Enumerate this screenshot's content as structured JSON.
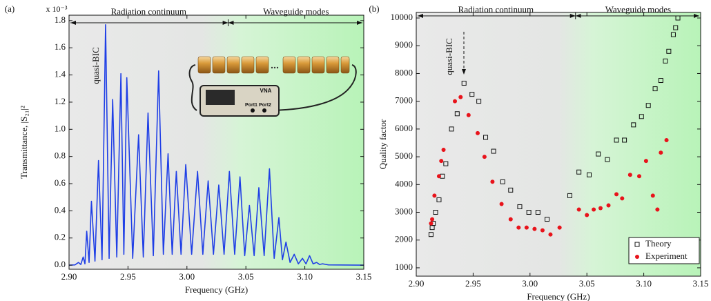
{
  "chart_data": [
    {
      "type": "line",
      "panel_label": "(a)",
      "x_label": "Frequency (GHz)",
      "y_label": "Transmittance, |S₂₁|²",
      "scale_label": "x 10⁻³",
      "annotations": [
        "Radiation continuum",
        "Waveguide modes",
        "quasi-BIC"
      ],
      "inset_labels": [
        "VNA",
        "Port1",
        "Port2"
      ],
      "color": "#1f3fe6",
      "x": [
        2.9,
        2.905,
        2.908,
        2.91,
        2.912,
        2.9135,
        2.915,
        2.917,
        2.919,
        2.922,
        2.925,
        2.928,
        2.931,
        2.934,
        2.937,
        2.9405,
        2.944,
        2.9465,
        2.949,
        2.954,
        2.959,
        2.963,
        2.967,
        2.9715,
        2.976,
        2.98,
        2.984,
        2.9875,
        2.991,
        2.995,
        2.999,
        3.004,
        3.009,
        3.0135,
        3.018,
        3.0225,
        3.027,
        3.0315,
        3.036,
        3.0405,
        3.045,
        3.049,
        3.053,
        3.057,
        3.061,
        3.0655,
        3.07,
        3.074,
        3.078,
        3.081,
        3.084,
        3.0875,
        3.091,
        3.0945,
        3.098,
        3.101,
        3.104,
        3.107,
        3.11,
        3.1125,
        3.115,
        3.12,
        3.15
      ],
      "values": [
        0,
        0.002,
        0.02,
        0.005,
        0.06,
        0.01,
        0.25,
        0.02,
        0.47,
        0.03,
        0.77,
        0.04,
        1.77,
        0.05,
        1.22,
        0.06,
        1.41,
        0.08,
        1.38,
        0.05,
        0.96,
        0.06,
        1.12,
        0.07,
        1.43,
        0.08,
        0.82,
        0.08,
        0.69,
        0.08,
        0.74,
        0.08,
        0.69,
        0.08,
        0.62,
        0.08,
        0.59,
        0.08,
        0.69,
        0.08,
        0.65,
        0.07,
        0.44,
        0.07,
        0.57,
        0.07,
        0.71,
        0.05,
        0.35,
        0.04,
        0.17,
        0.02,
        0.08,
        0.01,
        0.05,
        0.01,
        0.07,
        0.01,
        0.02,
        0.005,
        0.01,
        0.002,
        0
      ],
      "xlim": [
        2.9,
        3.15
      ],
      "ylim": [
        -0.03,
        1.84
      ],
      "xticks": [
        {
          "value": 2.9,
          "label": "2.90"
        },
        2.95,
        {
          "value": 3.0,
          "label": "3.00"
        },
        3.05,
        {
          "value": 3.1,
          "label": "3.10"
        },
        3.15
      ],
      "yticks": [
        {
          "value": 0,
          "label": "0.0"
        },
        0.2,
        0.4,
        0.6,
        0.8,
        {
          "value": 1,
          "label": "1.0"
        },
        1.2,
        1.4,
        1.6,
        1.8
      ],
      "grid": false
    },
    {
      "type": "scatter",
      "panel_label": "(b)",
      "x_label": "Frequency (GHz)",
      "y_label": "Quality factor",
      "annotations": [
        "Radiation continuum",
        "Waveguide modes",
        "quasi-BIC"
      ],
      "series": [
        {
          "name": "Theory",
          "color": "#111111",
          "marker": "square-open",
          "x": [
            2.913,
            2.914,
            2.915,
            2.917,
            2.92,
            2.923,
            2.926,
            2.931,
            2.936,
            2.942,
            2.949,
            2.955,
            2.961,
            2.968,
            2.976,
            2.983,
            2.991,
            2.999,
            3.007,
            3.015,
            3.035,
            3.043,
            3.052,
            3.06,
            3.068,
            3.076,
            3.083,
            3.091,
            3.098,
            3.104,
            3.11,
            3.115,
            3.119,
            3.122,
            3.126,
            3.128,
            3.13
          ],
          "values": [
            2200,
            2450,
            2600,
            3000,
            3450,
            4300,
            4750,
            6000,
            6550,
            7650,
            7250,
            7000,
            5700,
            5200,
            4100,
            3800,
            3200,
            3000,
            3000,
            2750,
            3600,
            4450,
            4350,
            5100,
            4900,
            5600,
            5600,
            6150,
            6450,
            6850,
            7450,
            7750,
            8450,
            8800,
            9400,
            9650,
            10000
          ]
        },
        {
          "name": "Experiment",
          "color": "#e8131b",
          "marker": "circle",
          "x": [
            2.913,
            2.914,
            2.916,
            2.92,
            2.922,
            2.924,
            2.934,
            2.939,
            2.946,
            2.954,
            2.96,
            2.967,
            2.975,
            2.983,
            2.99,
            2.997,
            3.004,
            3.011,
            3.018,
            3.026,
            3.043,
            3.05,
            3.056,
            3.062,
            3.069,
            3.076,
            3.081,
            3.088,
            3.096,
            3.102,
            3.108,
            3.112,
            3.115,
            3.12
          ],
          "values": [
            2600,
            2750,
            3600,
            4300,
            4850,
            5250,
            7000,
            7150,
            6500,
            5850,
            5000,
            4100,
            3300,
            2750,
            2450,
            2450,
            2400,
            2350,
            2200,
            2450,
            3100,
            2900,
            3100,
            3150,
            3250,
            3650,
            3500,
            4350,
            4300,
            4850,
            3600,
            3100,
            5150,
            5600
          ]
        }
      ],
      "xlim": [
        2.9,
        3.15
      ],
      "ylim": [
        700,
        10200
      ],
      "xticks": [
        {
          "value": 2.9,
          "label": "2.90"
        },
        2.95,
        {
          "value": 3.0,
          "label": "3.00"
        },
        3.05,
        {
          "value": 3.1,
          "label": "3.10"
        },
        3.15
      ],
      "yticks": [
        1000,
        2000,
        3000,
        4000,
        5000,
        6000,
        7000,
        8000,
        9000,
        10000
      ],
      "grid": false,
      "legend": "lower right"
    }
  ]
}
